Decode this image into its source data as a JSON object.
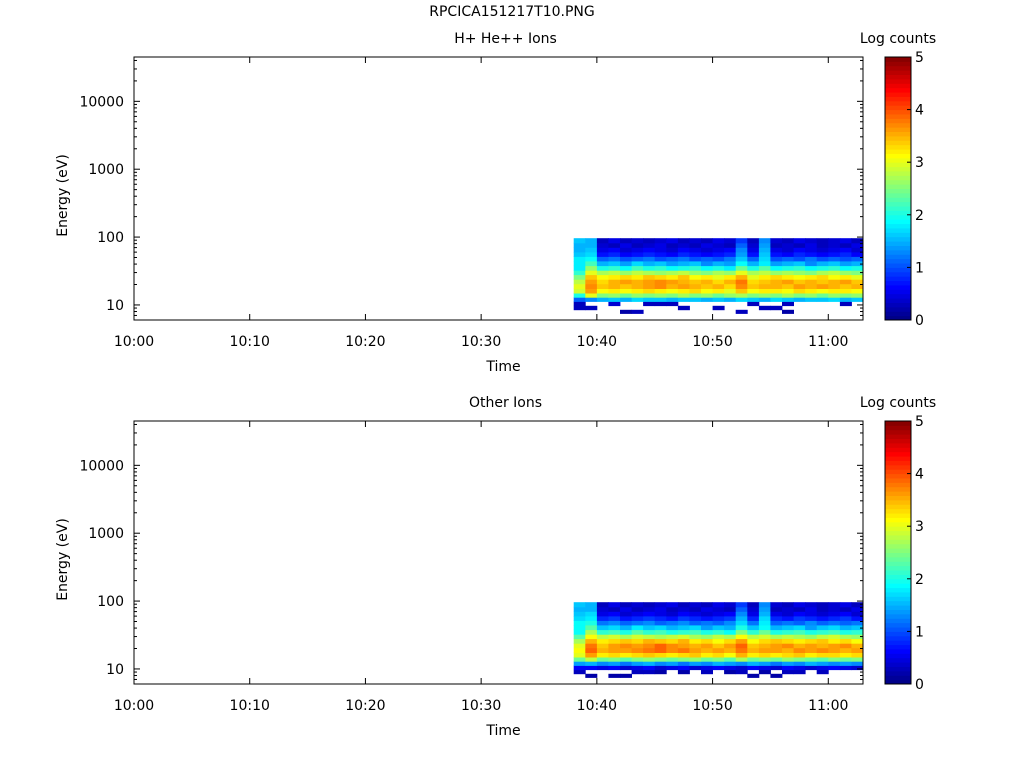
{
  "page": {
    "title": "RPCICA151217T10.PNG"
  },
  "chart_data": [
    {
      "type": "heatmap",
      "title": "H+ He++ Ions",
      "xlabel": "Time",
      "ylabel": "Energy (eV)",
      "x_ticks": [
        "10:00",
        "10:10",
        "10:20",
        "10:30",
        "10:40",
        "10:50",
        "11:00"
      ],
      "xlim": [
        "10:00",
        "11:03"
      ],
      "y_scale": "log",
      "ylim": [
        6,
        45000
      ],
      "y_ticks": [
        "10",
        "100",
        "1000",
        "10000"
      ],
      "colorbar": {
        "label": "Log counts",
        "range": [
          0,
          5
        ],
        "ticks": [
          "0",
          "1",
          "2",
          "3",
          "4",
          "5"
        ]
      },
      "time_bins": [
        "10:38",
        "10:39",
        "10:40",
        "10:41",
        "10:42",
        "10:43",
        "10:44",
        "10:45",
        "10:46",
        "10:47",
        "10:48",
        "10:49",
        "10:50",
        "10:51",
        "10:52",
        "10:53",
        "10:54",
        "10:55",
        "10:56",
        "10:57",
        "10:58",
        "10:59",
        "11:00",
        "11:01",
        "11:02"
      ],
      "energy_bins_eV": [
        7,
        8,
        9,
        10.5,
        12,
        14,
        16,
        19,
        22,
        26,
        30,
        35,
        41,
        48,
        56,
        65,
        76,
        89
      ],
      "log_counts": [
        [
          null,
          null,
          null,
          null,
          null,
          null,
          null,
          null,
          null,
          null,
          null,
          null,
          null,
          null,
          null,
          null,
          null,
          null,
          null,
          null,
          null,
          null,
          null,
          null,
          null
        ],
        [
          null,
          null,
          null,
          null,
          0.2,
          0.3,
          null,
          null,
          null,
          null,
          null,
          null,
          null,
          null,
          0.3,
          null,
          null,
          null,
          0.2,
          null,
          null,
          null,
          null,
          null,
          null
        ],
        [
          0.3,
          0.3,
          null,
          null,
          null,
          null,
          null,
          null,
          null,
          0.3,
          null,
          null,
          0.3,
          null,
          null,
          null,
          0.3,
          0.3,
          null,
          null,
          null,
          null,
          null,
          null,
          null
        ],
        [
          0.3,
          null,
          null,
          0.4,
          null,
          null,
          0.3,
          0.3,
          0.3,
          null,
          null,
          null,
          null,
          null,
          null,
          0.3,
          null,
          null,
          0.3,
          null,
          null,
          null,
          null,
          0.3,
          null
        ],
        [
          1.1,
          1.3,
          1.5,
          1.6,
          1.5,
          1.7,
          1.6,
          1.6,
          1.5,
          1.6,
          1.6,
          1.5,
          1.6,
          1.5,
          1.7,
          1.6,
          1.5,
          1.7,
          1.6,
          1.5,
          1.6,
          1.6,
          1.7,
          1.5,
          1.6
        ],
        [
          2.0,
          3.0,
          2.5,
          2.6,
          2.4,
          2.6,
          2.5,
          2.6,
          2.5,
          2.7,
          2.5,
          2.6,
          2.4,
          2.6,
          2.7,
          2.5,
          2.6,
          2.5,
          2.7,
          2.5,
          2.6,
          2.4,
          2.6,
          2.5,
          2.6
        ],
        [
          2.9,
          3.6,
          3.1,
          3.2,
          3.1,
          3.2,
          3.3,
          3.2,
          3.1,
          3.2,
          3.3,
          3.1,
          3.2,
          3.0,
          3.4,
          3.1,
          3.2,
          3.2,
          3.1,
          3.3,
          3.2,
          3.1,
          3.2,
          3.2,
          3.1
        ],
        [
          3.0,
          3.7,
          3.4,
          3.5,
          3.4,
          3.5,
          3.6,
          3.7,
          3.5,
          3.6,
          3.5,
          3.4,
          3.5,
          3.3,
          3.7,
          3.4,
          3.5,
          3.5,
          3.4,
          3.6,
          3.5,
          3.6,
          3.5,
          3.4,
          3.5
        ],
        [
          2.8,
          3.6,
          3.3,
          3.5,
          3.6,
          3.5,
          3.6,
          3.7,
          3.6,
          3.5,
          3.4,
          3.5,
          3.3,
          3.5,
          3.8,
          3.3,
          3.4,
          3.5,
          3.6,
          3.4,
          3.5,
          3.4,
          3.5,
          3.6,
          3.4
        ],
        [
          2.5,
          3.4,
          3.1,
          3.2,
          3.3,
          3.2,
          3.4,
          3.3,
          3.2,
          3.4,
          3.1,
          3.2,
          3.0,
          3.2,
          3.5,
          3.0,
          3.2,
          3.3,
          3.2,
          3.1,
          3.2,
          3.3,
          3.1,
          3.2,
          3.0
        ],
        [
          2.1,
          3.0,
          2.7,
          2.8,
          2.6,
          2.8,
          2.7,
          2.6,
          2.7,
          2.8,
          2.6,
          2.5,
          2.7,
          2.6,
          3.0,
          2.7,
          2.8,
          2.6,
          2.7,
          2.6,
          2.5,
          2.7,
          2.8,
          2.6,
          2.5
        ],
        [
          1.8,
          2.6,
          2.0,
          2.1,
          1.9,
          2.2,
          2.0,
          2.1,
          1.9,
          2.0,
          2.1,
          1.9,
          2.0,
          1.8,
          2.4,
          2.0,
          2.3,
          1.9,
          2.0,
          2.1,
          1.9,
          2.0,
          2.1,
          1.9,
          2.0
        ],
        [
          1.8,
          2.2,
          1.5,
          1.6,
          1.4,
          1.7,
          1.5,
          1.6,
          1.4,
          1.5,
          1.6,
          1.3,
          1.5,
          1.4,
          1.9,
          1.5,
          1.8,
          1.4,
          1.5,
          1.6,
          1.3,
          1.5,
          1.6,
          1.4,
          1.5
        ],
        [
          1.8,
          1.9,
          1.1,
          1.2,
          1.0,
          1.1,
          1.2,
          1.0,
          1.1,
          1.2,
          1.0,
          1.1,
          1.0,
          1.2,
          1.6,
          1.1,
          1.7,
          1.0,
          1.1,
          1.0,
          1.2,
          1.0,
          1.1,
          1.0,
          1.1
        ],
        [
          1.6,
          1.7,
          0.7,
          0.8,
          0.6,
          0.7,
          0.8,
          0.7,
          0.6,
          0.8,
          0.7,
          0.6,
          0.7,
          0.8,
          1.4,
          0.7,
          1.6,
          0.7,
          0.6,
          0.8,
          0.7,
          0.6,
          0.7,
          0.8,
          0.6
        ],
        [
          1.5,
          1.6,
          0.5,
          0.6,
          0.4,
          0.5,
          0.6,
          0.5,
          0.4,
          0.6,
          0.5,
          0.4,
          0.5,
          0.6,
          1.3,
          0.5,
          1.5,
          0.5,
          0.4,
          0.6,
          0.5,
          0.4,
          0.5,
          0.6,
          0.4
        ],
        [
          1.5,
          1.5,
          0.4,
          0.3,
          0.5,
          0.3,
          0.4,
          0.5,
          0.3,
          0.4,
          0.3,
          0.5,
          0.4,
          0.3,
          1.1,
          0.4,
          1.4,
          0.3,
          0.4,
          0.3,
          0.5,
          0.3,
          0.4,
          0.3,
          0.5
        ],
        [
          1.6,
          1.5,
          0.3,
          0.5,
          0.3,
          0.4,
          0.3,
          0.4,
          0.5,
          0.3,
          0.4,
          0.3,
          0.5,
          0.4,
          0.9,
          0.3,
          1.3,
          0.4,
          0.3,
          0.5,
          0.4,
          0.3,
          0.4,
          0.5,
          0.3
        ]
      ]
    },
    {
      "type": "heatmap",
      "title": "Other Ions",
      "xlabel": "Time",
      "ylabel": "Energy (eV)",
      "x_ticks": [
        "10:00",
        "10:10",
        "10:20",
        "10:30",
        "10:40",
        "10:50",
        "11:00"
      ],
      "xlim": [
        "10:00",
        "11:03"
      ],
      "y_scale": "log",
      "ylim": [
        6,
        45000
      ],
      "y_ticks": [
        "10",
        "100",
        "1000",
        "10000"
      ],
      "colorbar": {
        "label": "Log counts",
        "range": [
          0,
          5
        ],
        "ticks": [
          "0",
          "1",
          "2",
          "3",
          "4",
          "5"
        ]
      },
      "time_bins": [
        "10:38",
        "10:39",
        "10:40",
        "10:41",
        "10:42",
        "10:43",
        "10:44",
        "10:45",
        "10:46",
        "10:47",
        "10:48",
        "10:49",
        "10:50",
        "10:51",
        "10:52",
        "10:53",
        "10:54",
        "10:55",
        "10:56",
        "10:57",
        "10:58",
        "10:59",
        "11:00",
        "11:01",
        "11:02"
      ],
      "energy_bins_eV": [
        7,
        8,
        9,
        10.5,
        12,
        14,
        16,
        19,
        22,
        26,
        30,
        35,
        41,
        48,
        56,
        65,
        76,
        89
      ],
      "log_counts": [
        [
          null,
          null,
          null,
          null,
          null,
          null,
          null,
          null,
          null,
          null,
          null,
          null,
          null,
          null,
          null,
          null,
          null,
          null,
          null,
          null,
          null,
          null,
          null,
          null,
          null
        ],
        [
          null,
          0.2,
          null,
          0.2,
          0.2,
          null,
          null,
          null,
          null,
          null,
          null,
          null,
          null,
          null,
          null,
          0.2,
          null,
          0.2,
          null,
          null,
          null,
          null,
          null,
          null,
          null
        ],
        [
          0.3,
          null,
          null,
          null,
          null,
          0.3,
          0.3,
          0.2,
          null,
          0.2,
          null,
          0.3,
          null,
          0.2,
          0.3,
          null,
          0.2,
          null,
          0.3,
          0.3,
          null,
          0.3,
          null,
          null,
          null
        ],
        [
          0.6,
          0.6,
          0.5,
          0.6,
          0.4,
          0.5,
          0.6,
          0.4,
          0.5,
          0.6,
          0.4,
          0.5,
          0.6,
          0.5,
          0.4,
          0.6,
          0.5,
          0.4,
          0.6,
          0.5,
          0.4,
          0.5,
          0.6,
          0.5,
          0.4
        ],
        [
          1.4,
          1.5,
          1.3,
          1.4,
          1.2,
          1.4,
          1.5,
          1.3,
          1.4,
          1.2,
          1.4,
          1.3,
          1.5,
          1.4,
          1.3,
          1.5,
          1.4,
          1.2,
          1.4,
          1.3,
          1.5,
          1.4,
          1.3,
          1.4,
          1.3
        ],
        [
          2.4,
          2.8,
          2.4,
          2.5,
          2.3,
          2.5,
          2.6,
          2.5,
          2.4,
          2.5,
          2.6,
          2.4,
          2.5,
          2.3,
          2.7,
          2.4,
          2.5,
          2.4,
          2.6,
          2.5,
          2.4,
          2.3,
          2.5,
          2.4,
          2.5
        ],
        [
          3.0,
          3.6,
          3.2,
          3.3,
          3.2,
          3.3,
          3.4,
          3.3,
          3.2,
          3.3,
          3.4,
          3.2,
          3.3,
          3.1,
          3.5,
          3.2,
          3.3,
          3.2,
          3.3,
          3.4,
          3.2,
          3.3,
          3.3,
          3.2,
          3.3
        ],
        [
          3.1,
          3.9,
          3.5,
          3.6,
          3.6,
          3.7,
          3.8,
          3.9,
          3.7,
          3.8,
          3.6,
          3.5,
          3.6,
          3.5,
          3.8,
          3.5,
          3.6,
          3.6,
          3.5,
          3.7,
          3.6,
          3.7,
          3.6,
          3.5,
          3.6
        ],
        [
          3.0,
          3.8,
          3.4,
          3.6,
          3.7,
          3.6,
          3.7,
          3.9,
          3.7,
          3.6,
          3.5,
          3.6,
          3.4,
          3.6,
          3.9,
          3.4,
          3.5,
          3.6,
          3.7,
          3.5,
          3.6,
          3.5,
          3.6,
          3.7,
          3.5
        ],
        [
          2.7,
          3.5,
          3.2,
          3.3,
          3.4,
          3.3,
          3.5,
          3.4,
          3.3,
          3.5,
          3.2,
          3.3,
          3.1,
          3.3,
          3.6,
          3.1,
          3.3,
          3.4,
          3.3,
          3.2,
          3.3,
          3.4,
          3.2,
          3.3,
          3.1
        ],
        [
          2.3,
          3.1,
          2.8,
          2.9,
          2.7,
          2.9,
          2.8,
          2.7,
          2.8,
          2.9,
          2.7,
          2.6,
          2.8,
          2.7,
          3.1,
          2.8,
          2.9,
          2.7,
          2.8,
          2.7,
          2.6,
          2.8,
          2.9,
          2.7,
          2.6
        ],
        [
          1.9,
          2.7,
          2.1,
          2.2,
          2.0,
          2.3,
          2.1,
          2.2,
          2.0,
          2.1,
          2.2,
          2.0,
          2.1,
          1.9,
          2.5,
          2.1,
          2.4,
          2.0,
          2.1,
          2.2,
          2.0,
          2.1,
          2.2,
          2.0,
          2.1
        ],
        [
          1.9,
          2.3,
          1.6,
          1.7,
          1.5,
          1.8,
          1.6,
          1.7,
          1.5,
          1.6,
          1.7,
          1.4,
          1.6,
          1.5,
          2.0,
          1.6,
          1.9,
          1.5,
          1.6,
          1.7,
          1.4,
          1.6,
          1.7,
          1.5,
          1.6
        ],
        [
          1.9,
          2.0,
          1.2,
          1.3,
          1.1,
          1.2,
          1.3,
          1.1,
          1.2,
          1.3,
          1.1,
          1.2,
          1.1,
          1.3,
          1.7,
          1.2,
          1.8,
          1.1,
          1.2,
          1.1,
          1.3,
          1.1,
          1.2,
          1.1,
          1.2
        ],
        [
          1.7,
          1.8,
          0.8,
          0.9,
          0.7,
          0.8,
          0.9,
          0.8,
          0.7,
          0.9,
          0.8,
          0.7,
          0.8,
          0.9,
          1.5,
          0.8,
          1.7,
          0.8,
          0.7,
          0.9,
          0.8,
          0.7,
          0.8,
          0.9,
          0.7
        ],
        [
          1.6,
          1.7,
          0.5,
          0.6,
          0.4,
          0.5,
          0.6,
          0.5,
          0.4,
          0.6,
          0.5,
          0.4,
          0.5,
          0.6,
          1.3,
          0.5,
          1.5,
          0.5,
          0.4,
          0.6,
          0.5,
          0.4,
          0.5,
          0.6,
          0.4
        ],
        [
          1.5,
          1.5,
          0.4,
          0.3,
          0.5,
          0.3,
          0.4,
          0.5,
          0.3,
          0.4,
          0.3,
          0.5,
          0.4,
          0.3,
          1.1,
          0.4,
          1.4,
          0.3,
          0.4,
          0.3,
          0.5,
          0.3,
          0.4,
          0.3,
          0.5
        ],
        [
          1.6,
          1.5,
          0.3,
          0.5,
          0.3,
          0.4,
          0.3,
          0.4,
          0.5,
          0.3,
          0.4,
          0.3,
          0.5,
          0.4,
          0.9,
          0.3,
          1.3,
          0.4,
          0.3,
          0.5,
          0.4,
          0.3,
          0.4,
          0.5,
          0.3
        ]
      ]
    }
  ]
}
